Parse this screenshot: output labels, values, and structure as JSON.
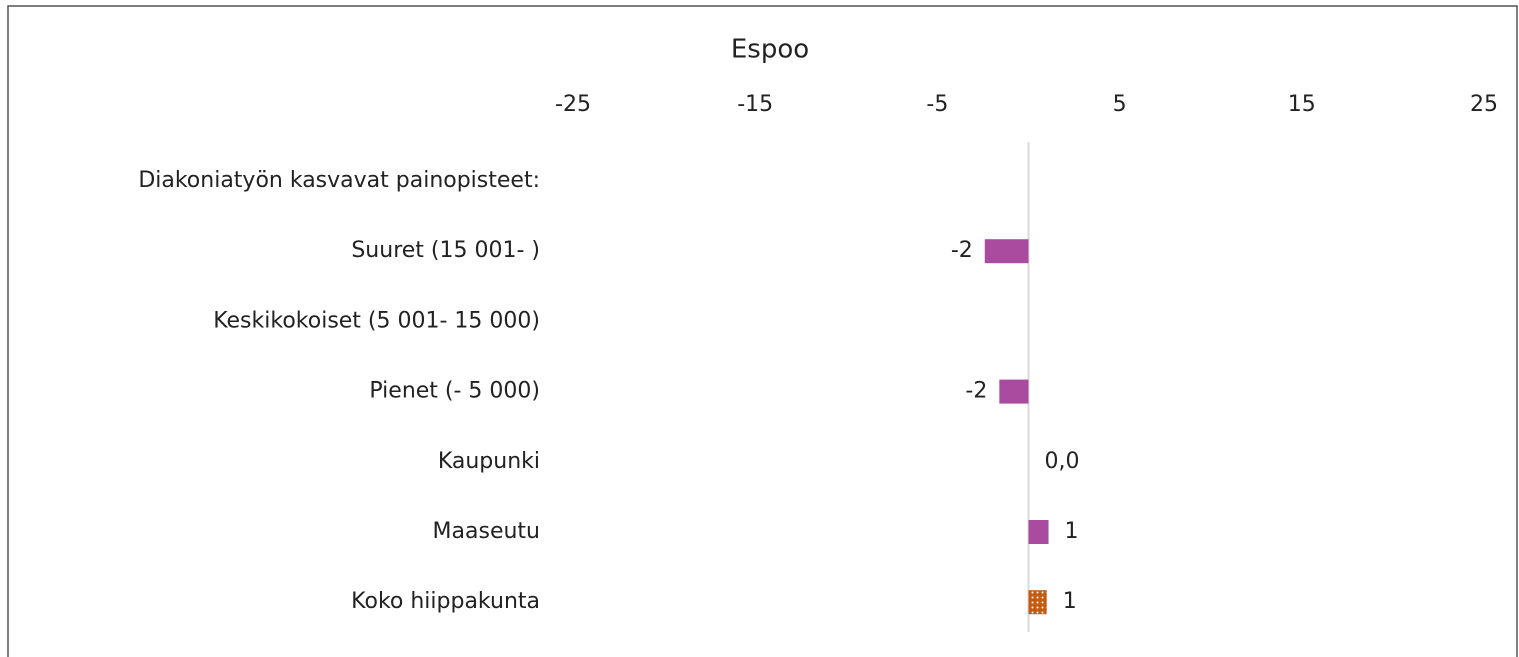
{
  "chart_data": {
    "type": "hbar",
    "title": "Espoo",
    "categories": [
      "Diakoniatyön kasvavat painopisteet:",
      "Suuret (15 001- )",
      "Keskikokoiset (5 001- 15 000)",
      "Pienet (- 5 000)",
      "Kaupunki",
      "Maaseutu",
      "Koko hiippakunta"
    ],
    "values": [
      null,
      -2.4,
      null,
      -1.6,
      0,
      1.1,
      1.0
    ],
    "value_labels": [
      null,
      "-2",
      null,
      "-2",
      "0,0",
      "1",
      "1"
    ],
    "colors": [
      null,
      "#a94c9f",
      null,
      "#a94c9f",
      "#a94c9f",
      "#a94c9f",
      "#c55a11"
    ],
    "patterns": [
      null,
      null,
      null,
      null,
      null,
      null,
      "dots"
    ],
    "xlim": [
      -25,
      25
    ],
    "xticks": [
      -25,
      -15,
      -5,
      5,
      15,
      25
    ]
  }
}
